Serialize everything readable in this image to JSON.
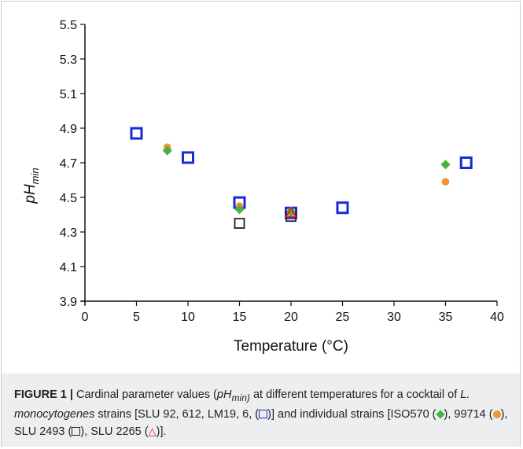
{
  "chart_data": {
    "type": "scatter",
    "xlabel": "Temperature (°C)",
    "ylabel": {
      "main": "pH",
      "sub": "min"
    },
    "xlim": [
      0,
      40
    ],
    "ylim": [
      3.9,
      5.5
    ],
    "x_ticks": [
      "0",
      "5",
      "10",
      "15",
      "20",
      "25",
      "30",
      "35",
      "40"
    ],
    "y_ticks": [
      "3.9",
      "4.1",
      "4.3",
      "4.5",
      "4.7",
      "4.9",
      "5.1",
      "5.3",
      "5.5"
    ],
    "grid": false,
    "series": [
      {
        "name": "SLU 92, 612, LM19, 6",
        "marker": "open-square",
        "color": "#1a2bd6",
        "points": [
          [
            5,
            4.87
          ],
          [
            10,
            4.73
          ],
          [
            15,
            4.47
          ],
          [
            20,
            4.41
          ],
          [
            25,
            4.44
          ],
          [
            37,
            4.7
          ]
        ]
      },
      {
        "name": "ISO570",
        "marker": "diamond",
        "color": "#46b43c",
        "points": [
          [
            8,
            4.77
          ],
          [
            15,
            4.43
          ],
          [
            20,
            4.42
          ],
          [
            35,
            4.69
          ]
        ]
      },
      {
        "name": "99714",
        "marker": "circle",
        "color": "#f0953a",
        "points": [
          [
            8,
            4.79
          ],
          [
            15,
            4.45
          ],
          [
            20,
            4.41
          ],
          [
            35,
            4.59
          ]
        ]
      },
      {
        "name": "SLU 2493",
        "marker": "open-square-small",
        "color": "#222222",
        "points": [
          [
            15,
            4.35
          ],
          [
            20,
            4.39
          ]
        ]
      },
      {
        "name": "SLU 2265",
        "marker": "open-triangle",
        "color": "#e02020",
        "points": [
          [
            20,
            4.41
          ]
        ]
      }
    ]
  },
  "caption": {
    "label": "FIGURE 1 |",
    "t1": " Cardinal parameter values (",
    "ph": "pH",
    "min": "min)",
    "t2": " at different temperatures for a cocktail of ",
    "species": "L. monocytogenes",
    "t3": " strains [SLU 92, 612, LM19, 6, (",
    "t4": ")] and individual strains [ISO570 (",
    "t5": "), 99714 (",
    "t6": "), SLU 2493 (",
    "t7": "), SLU 2265 (",
    "tri": "△",
    "t8": ")]."
  }
}
